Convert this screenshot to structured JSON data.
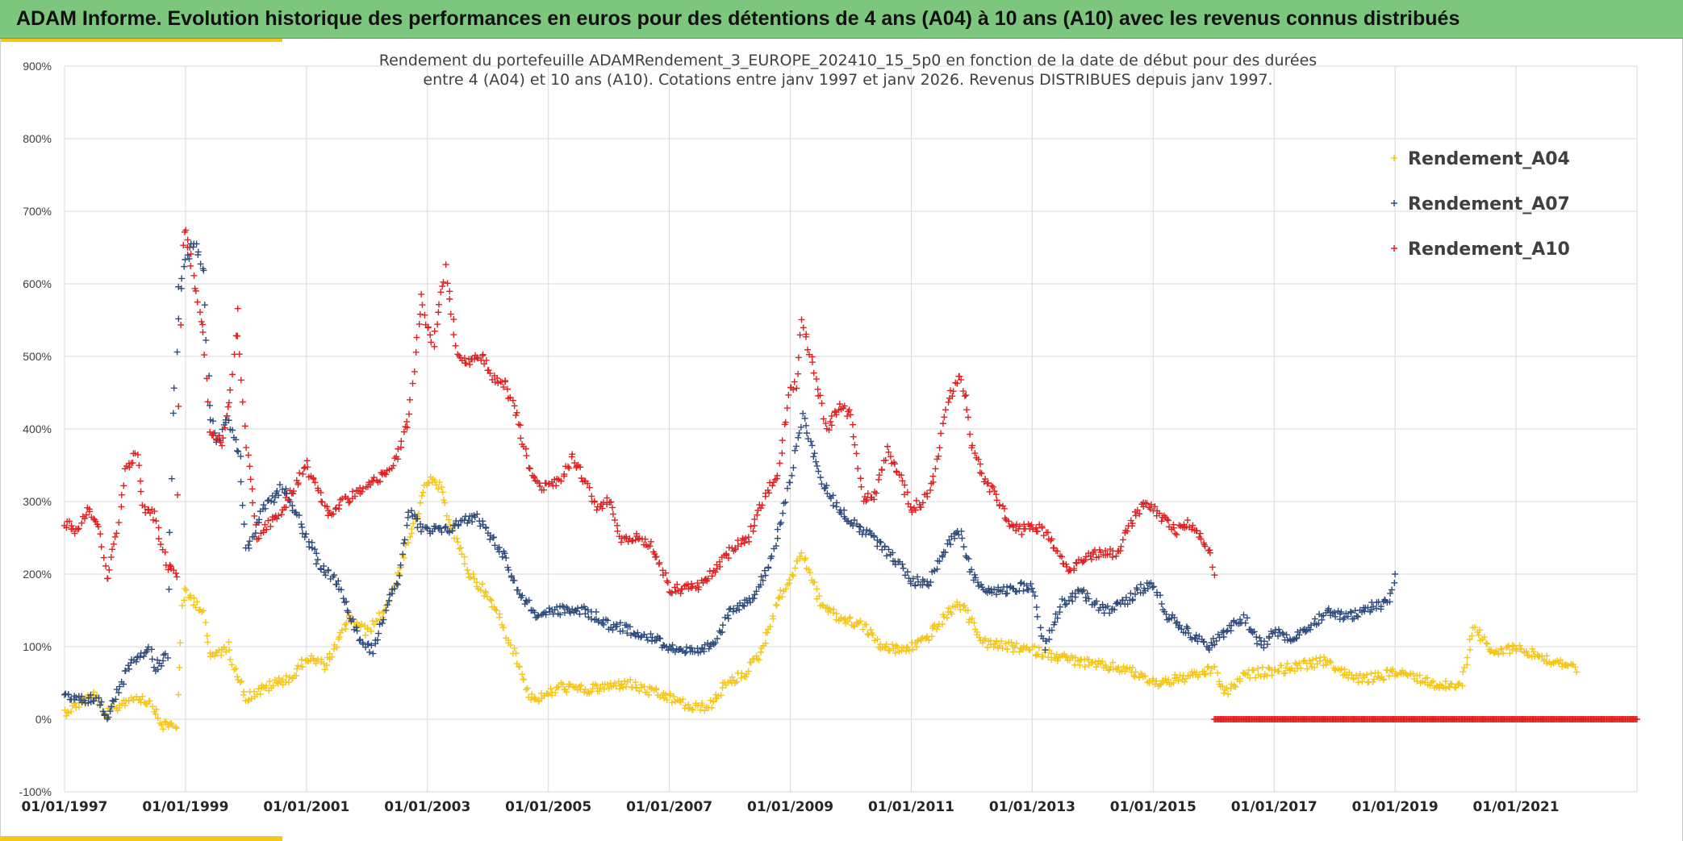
{
  "header": {
    "title": "ADAM Informe. Evolution historique des performances en euros pour des détentions de 4 ans (A04) à 10 ans (A10) avec les revenus connus distribués"
  },
  "colors": {
    "header_bg": "#7dc67d",
    "accent": "#f5c518",
    "A04": "#f5c518",
    "A07": "#2f4b7c",
    "A10": "#e02020"
  },
  "chart_data": {
    "type": "scatter",
    "title_lines": [
      "Rendement du portefeuille ADAMRendement_3_EUROPE_202410_15_5p0  en fonction de la date de début pour des durées",
      "entre 4 (A04) et 10 ans (A10). Cotations entre janv 1997 et janv 2026. Revenus DISTRIBUES depuis janv 1997."
    ],
    "xlim": [
      1997.0,
      2023.0
    ],
    "ylim": [
      -100,
      900
    ],
    "y_ticks": [
      -100,
      0,
      100,
      200,
      300,
      400,
      500,
      600,
      700,
      800,
      900
    ],
    "y_tick_labels": [
      "-100%",
      "0%",
      "100%",
      "200%",
      "300%",
      "400%",
      "500%",
      "600%",
      "700%",
      "800%",
      "900%"
    ],
    "x_ticks": [
      1997,
      1999,
      2001,
      2003,
      2005,
      2007,
      2009,
      2011,
      2013,
      2015,
      2017,
      2019,
      2021
    ],
    "x_tick_labels": [
      "01/01/1997",
      "01/01/1999",
      "01/01/2001",
      "01/01/2003",
      "01/01/2005",
      "01/01/2007",
      "01/01/2009",
      "01/01/2011",
      "01/01/2013",
      "01/01/2015",
      "01/01/2017",
      "01/01/2019",
      "01/01/2021"
    ],
    "grid": true,
    "legend_position": "top-right",
    "marker": "+",
    "series": [
      {
        "name": "Rendement_A04",
        "color": "#f5c518",
        "points": [
          [
            1997.0,
            10
          ],
          [
            1997.3,
            25
          ],
          [
            1997.5,
            35
          ],
          [
            1997.65,
            5
          ],
          [
            1997.85,
            15
          ],
          [
            1998.0,
            25
          ],
          [
            1998.2,
            32
          ],
          [
            1998.45,
            22
          ],
          [
            1998.6,
            -8
          ],
          [
            1998.85,
            -8
          ],
          [
            1998.95,
            150
          ],
          [
            1999.0,
            175
          ],
          [
            1999.3,
            150
          ],
          [
            1999.4,
            85
          ],
          [
            1999.7,
            100
          ],
          [
            1999.8,
            75
          ],
          [
            2000.0,
            30
          ],
          [
            2000.5,
            50
          ],
          [
            2000.8,
            60
          ],
          [
            2001.0,
            85
          ],
          [
            2001.3,
            75
          ],
          [
            2001.5,
            100
          ],
          [
            2001.7,
            140
          ],
          [
            2002.0,
            120
          ],
          [
            2002.3,
            150
          ],
          [
            2002.6,
            220
          ],
          [
            2003.0,
            330
          ],
          [
            2003.2,
            320
          ],
          [
            2003.5,
            240
          ],
          [
            2003.7,
            200
          ],
          [
            2003.9,
            180
          ],
          [
            2004.2,
            140
          ],
          [
            2004.5,
            75
          ],
          [
            2004.7,
            30
          ],
          [
            2004.9,
            30
          ],
          [
            2005.2,
            45
          ],
          [
            2005.6,
            40
          ],
          [
            2006.0,
            45
          ],
          [
            2006.3,
            50
          ],
          [
            2006.6,
            40
          ],
          [
            2007.0,
            30
          ],
          [
            2007.4,
            15
          ],
          [
            2007.7,
            20
          ],
          [
            2007.9,
            45
          ],
          [
            2008.2,
            60
          ],
          [
            2008.5,
            90
          ],
          [
            2008.8,
            165
          ],
          [
            2008.95,
            185
          ],
          [
            2009.2,
            230
          ],
          [
            2009.5,
            160
          ],
          [
            2009.8,
            140
          ],
          [
            2010.2,
            130
          ],
          [
            2010.5,
            100
          ],
          [
            2010.8,
            95
          ],
          [
            2011.0,
            100
          ],
          [
            2011.3,
            115
          ],
          [
            2011.6,
            145
          ],
          [
            2011.8,
            160
          ],
          [
            2011.95,
            140
          ],
          [
            2012.2,
            105
          ],
          [
            2012.6,
            100
          ],
          [
            2013.0,
            95
          ],
          [
            2013.5,
            85
          ],
          [
            2014.0,
            75
          ],
          [
            2014.5,
            70
          ],
          [
            2014.8,
            60
          ],
          [
            2015.0,
            50
          ],
          [
            2015.4,
            55
          ],
          [
            2015.7,
            60
          ],
          [
            2016.0,
            70
          ],
          [
            2016.2,
            35
          ],
          [
            2016.5,
            60
          ],
          [
            2016.8,
            65
          ],
          [
            2017.2,
            70
          ],
          [
            2017.5,
            75
          ],
          [
            2017.9,
            80
          ],
          [
            2018.2,
            60
          ],
          [
            2018.5,
            55
          ],
          [
            2018.8,
            60
          ],
          [
            2019.0,
            65
          ],
          [
            2019.3,
            60
          ],
          [
            2019.6,
            50
          ],
          [
            2019.9,
            45
          ],
          [
            2020.1,
            50
          ],
          [
            2020.3,
            130
          ],
          [
            2020.6,
            90
          ],
          [
            2021.0,
            100
          ],
          [
            2021.3,
            90
          ],
          [
            2021.6,
            80
          ],
          [
            2021.9,
            75
          ],
          [
            2022.0,
            65
          ]
        ]
      },
      {
        "name": "Rendement_A07",
        "color": "#2f4b7c",
        "points": [
          [
            1997.0,
            30
          ],
          [
            1997.3,
            25
          ],
          [
            1997.5,
            30
          ],
          [
            1997.7,
            5
          ],
          [
            1997.9,
            40
          ],
          [
            1998.1,
            80
          ],
          [
            1998.4,
            100
          ],
          [
            1998.5,
            70
          ],
          [
            1998.7,
            90
          ],
          [
            1998.8,
            420
          ],
          [
            1998.9,
            590
          ],
          [
            1999.0,
            630
          ],
          [
            1999.15,
            660
          ],
          [
            1999.3,
            620
          ],
          [
            1999.4,
            430
          ],
          [
            1999.5,
            380
          ],
          [
            1999.7,
            420
          ],
          [
            1999.9,
            360
          ],
          [
            2000.0,
            230
          ],
          [
            2000.3,
            290
          ],
          [
            2000.6,
            320
          ],
          [
            2000.8,
            290
          ],
          [
            2001.0,
            250
          ],
          [
            2001.2,
            215
          ],
          [
            2001.5,
            190
          ],
          [
            2001.7,
            150
          ],
          [
            2001.9,
            110
          ],
          [
            2002.1,
            95
          ],
          [
            2002.3,
            150
          ],
          [
            2002.5,
            190
          ],
          [
            2002.7,
            290
          ],
          [
            2002.9,
            260
          ],
          [
            2003.0,
            260
          ],
          [
            2003.3,
            260
          ],
          [
            2003.5,
            270
          ],
          [
            2003.8,
            280
          ],
          [
            2004.0,
            260
          ],
          [
            2004.3,
            220
          ],
          [
            2004.5,
            175
          ],
          [
            2004.8,
            145
          ],
          [
            2005.2,
            150
          ],
          [
            2005.6,
            150
          ],
          [
            2006.0,
            130
          ],
          [
            2006.5,
            120
          ],
          [
            2007.0,
            100
          ],
          [
            2007.5,
            90
          ],
          [
            2007.8,
            110
          ],
          [
            2008.0,
            150
          ],
          [
            2008.4,
            170
          ],
          [
            2008.7,
            220
          ],
          [
            2009.0,
            330
          ],
          [
            2009.2,
            420
          ],
          [
            2009.5,
            330
          ],
          [
            2009.8,
            290
          ],
          [
            2010.2,
            260
          ],
          [
            2010.5,
            240
          ],
          [
            2010.8,
            215
          ],
          [
            2011.0,
            190
          ],
          [
            2011.3,
            190
          ],
          [
            2011.6,
            240
          ],
          [
            2011.8,
            260
          ],
          [
            2012.0,
            200
          ],
          [
            2012.3,
            175
          ],
          [
            2012.7,
            180
          ],
          [
            2013.0,
            185
          ],
          [
            2013.2,
            100
          ],
          [
            2013.5,
            160
          ],
          [
            2013.8,
            175
          ],
          [
            2014.2,
            150
          ],
          [
            2014.5,
            160
          ],
          [
            2014.8,
            180
          ],
          [
            2015.0,
            185
          ],
          [
            2015.2,
            145
          ],
          [
            2015.6,
            120
          ],
          [
            2015.9,
            100
          ],
          [
            2016.2,
            120
          ],
          [
            2016.5,
            140
          ],
          [
            2016.8,
            100
          ],
          [
            2017.0,
            120
          ],
          [
            2017.3,
            110
          ],
          [
            2017.6,
            130
          ],
          [
            2017.9,
            150
          ],
          [
            2018.2,
            140
          ],
          [
            2018.6,
            155
          ],
          [
            2018.9,
            160
          ],
          [
            2019.0,
            200
          ]
        ]
      },
      {
        "name": "Rendement_A10",
        "color": "#e02020",
        "points": [
          [
            1997.0,
            270
          ],
          [
            1997.2,
            260
          ],
          [
            1997.4,
            290
          ],
          [
            1997.6,
            260
          ],
          [
            1997.7,
            190
          ],
          [
            1997.9,
            270
          ],
          [
            1998.0,
            340
          ],
          [
            1998.2,
            370
          ],
          [
            1998.3,
            290
          ],
          [
            1998.5,
            280
          ],
          [
            1998.7,
            210
          ],
          [
            1998.85,
            200
          ],
          [
            1998.95,
            650
          ],
          [
            1999.0,
            680
          ],
          [
            1999.1,
            620
          ],
          [
            1999.3,
            530
          ],
          [
            1999.4,
            400
          ],
          [
            1999.6,
            380
          ],
          [
            1999.75,
            450
          ],
          [
            1999.85,
            560
          ],
          [
            2000.0,
            380
          ],
          [
            2000.2,
            250
          ],
          [
            2000.4,
            270
          ],
          [
            2000.6,
            290
          ],
          [
            2000.8,
            320
          ],
          [
            2001.0,
            350
          ],
          [
            2001.2,
            310
          ],
          [
            2001.4,
            280
          ],
          [
            2001.6,
            300
          ],
          [
            2001.8,
            310
          ],
          [
            2002.0,
            320
          ],
          [
            2002.3,
            340
          ],
          [
            2002.5,
            360
          ],
          [
            2002.7,
            420
          ],
          [
            2002.9,
            580
          ],
          [
            2003.0,
            540
          ],
          [
            2003.1,
            520
          ],
          [
            2003.3,
            620
          ],
          [
            2003.5,
            500
          ],
          [
            2003.7,
            490
          ],
          [
            2003.9,
            500
          ],
          [
            2004.1,
            470
          ],
          [
            2004.3,
            460
          ],
          [
            2004.5,
            410
          ],
          [
            2004.7,
            340
          ],
          [
            2004.9,
            320
          ],
          [
            2005.2,
            330
          ],
          [
            2005.4,
            360
          ],
          [
            2005.6,
            330
          ],
          [
            2005.8,
            290
          ],
          [
            2006.0,
            300
          ],
          [
            2006.2,
            250
          ],
          [
            2006.5,
            250
          ],
          [
            2006.7,
            240
          ],
          [
            2007.0,
            180
          ],
          [
            2007.3,
            180
          ],
          [
            2007.5,
            185
          ],
          [
            2007.7,
            200
          ],
          [
            2008.0,
            230
          ],
          [
            2008.3,
            250
          ],
          [
            2008.6,
            310
          ],
          [
            2008.8,
            340
          ],
          [
            2009.0,
            460
          ],
          [
            2009.1,
            460
          ],
          [
            2009.2,
            550
          ],
          [
            2009.4,
            480
          ],
          [
            2009.6,
            400
          ],
          [
            2009.8,
            430
          ],
          [
            2010.0,
            420
          ],
          [
            2010.2,
            300
          ],
          [
            2010.4,
            310
          ],
          [
            2010.6,
            370
          ],
          [
            2010.8,
            340
          ],
          [
            2011.0,
            290
          ],
          [
            2011.2,
            300
          ],
          [
            2011.4,
            340
          ],
          [
            2011.6,
            440
          ],
          [
            2011.8,
            470
          ],
          [
            2011.9,
            440
          ],
          [
            2012.0,
            380
          ],
          [
            2012.2,
            330
          ],
          [
            2012.4,
            310
          ],
          [
            2012.6,
            270
          ],
          [
            2012.8,
            260
          ],
          [
            2013.0,
            270
          ],
          [
            2013.3,
            250
          ],
          [
            2013.6,
            200
          ],
          [
            2013.8,
            220
          ],
          [
            2014.1,
            230
          ],
          [
            2014.4,
            230
          ],
          [
            2014.7,
            280
          ],
          [
            2014.9,
            300
          ],
          [
            2015.1,
            280
          ],
          [
            2015.4,
            260
          ],
          [
            2015.6,
            270
          ],
          [
            2015.8,
            250
          ],
          [
            2015.95,
            230
          ],
          [
            2016.0,
            200
          ],
          [
            2016.01,
            0
          ],
          [
            2017.0,
            0
          ],
          [
            2018.0,
            0
          ],
          [
            2019.0,
            0
          ],
          [
            2020.0,
            0
          ],
          [
            2021.0,
            0
          ],
          [
            2022.0,
            0
          ],
          [
            2023.0,
            0
          ]
        ]
      }
    ]
  }
}
